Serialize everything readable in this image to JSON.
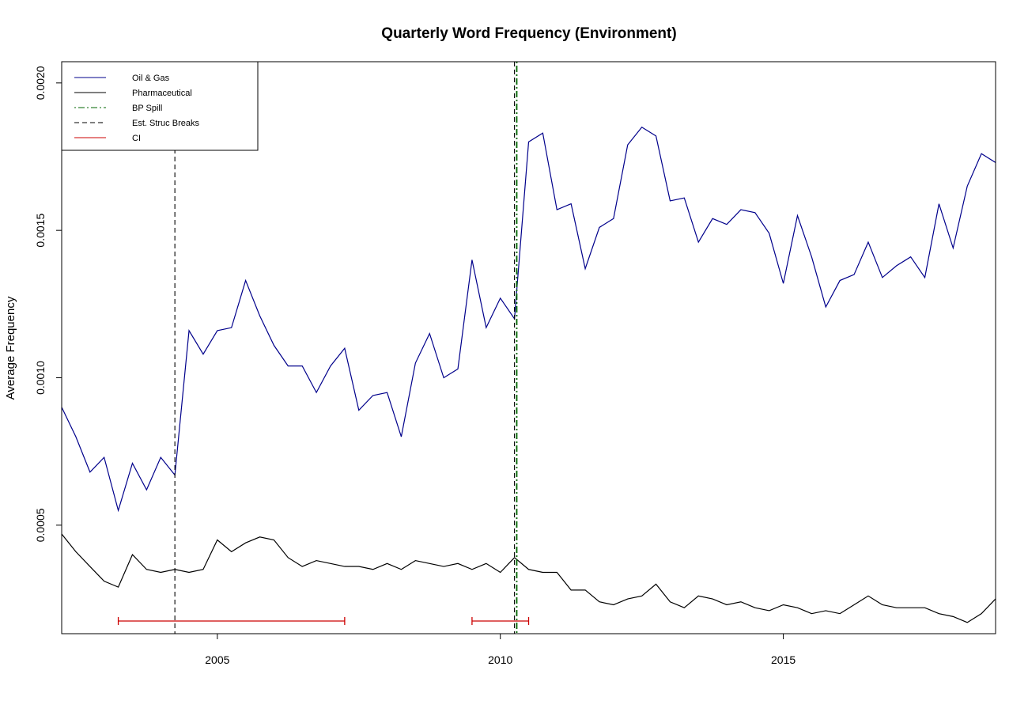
{
  "chart_data": {
    "type": "line",
    "title": "Quarterly Word Frequency (Environment)",
    "xlabel": "",
    "ylabel": "Average Frequency",
    "xlim": [
      2002.25,
      2018.75
    ],
    "ylim": [
      0.000132,
      0.002072
    ],
    "x_ticks": [
      2005,
      2010,
      2015
    ],
    "x_tick_labels": [
      "2005",
      "2010",
      "2015"
    ],
    "y_ticks": [
      0.0005,
      0.001,
      0.0015,
      0.002
    ],
    "y_tick_labels": [
      "0.0005",
      "0.0010",
      "0.0015",
      "0.0020"
    ],
    "legend": {
      "position": "top-left",
      "entries": [
        {
          "label": "Oil & Gas",
          "color": "#00008B",
          "style": "solid"
        },
        {
          "label": "Pharmaceutical",
          "color": "#000000",
          "style": "solid"
        },
        {
          "label": "BP Spill",
          "color": "#006400",
          "style": "dotdash"
        },
        {
          "label": "Est. Struc Breaks",
          "color": "#000000",
          "style": "dashed"
        },
        {
          "label": "CI",
          "color": "#CC0000",
          "style": "solid"
        }
      ]
    },
    "x_start": 2002.25,
    "x_step": 0.25,
    "series": [
      {
        "name": "Oil & Gas",
        "color": "#00008B",
        "values": [
          0.0009,
          0.0008,
          0.00068,
          0.00073,
          0.00055,
          0.00071,
          0.00062,
          0.00073,
          0.00067,
          0.00116,
          0.00108,
          0.00116,
          0.00117,
          0.00133,
          0.00121,
          0.00111,
          0.00104,
          0.00104,
          0.00095,
          0.00104,
          0.0011,
          0.00089,
          0.00094,
          0.00095,
          0.0008,
          0.00105,
          0.00115,
          0.001,
          0.00103,
          0.0014,
          0.00117,
          0.00127,
          0.0012,
          0.0018,
          0.00183,
          0.00157,
          0.00159,
          0.00137,
          0.00151,
          0.00154,
          0.00179,
          0.00185,
          0.00182,
          0.0016,
          0.00161,
          0.00146,
          0.00154,
          0.00152,
          0.00157,
          0.00156,
          0.00149,
          0.00132,
          0.00155,
          0.00141,
          0.00124,
          0.00133,
          0.00135,
          0.00146,
          0.00134,
          0.00138,
          0.00141,
          0.00134,
          0.00159,
          0.00144,
          0.00165,
          0.00176,
          0.00173
        ]
      },
      {
        "name": "Pharmaceutical",
        "color": "#000000",
        "values": [
          0.00047,
          0.00041,
          0.00036,
          0.00031,
          0.00029,
          0.0004,
          0.00035,
          0.00034,
          0.00035,
          0.00034,
          0.00035,
          0.00045,
          0.00041,
          0.00044,
          0.00046,
          0.00045,
          0.00039,
          0.00036,
          0.00038,
          0.00037,
          0.00036,
          0.00036,
          0.00035,
          0.00037,
          0.00035,
          0.00038,
          0.00037,
          0.00036,
          0.00037,
          0.00035,
          0.00037,
          0.00034,
          0.00039,
          0.00035,
          0.00034,
          0.00034,
          0.00028,
          0.00028,
          0.00024,
          0.00023,
          0.00025,
          0.00026,
          0.0003,
          0.00024,
          0.00022,
          0.00026,
          0.00025,
          0.00023,
          0.00024,
          0.00022,
          0.00021,
          0.00023,
          0.00022,
          0.0002,
          0.00021,
          0.0002,
          0.00023,
          0.00026,
          0.00023,
          0.00022,
          0.00022,
          0.00022,
          0.0002,
          0.00019,
          0.00017,
          0.0002,
          0.00025,
          0.00025
        ]
      }
    ],
    "vertical_lines": [
      {
        "name": "BP Spill",
        "x": 2010.29,
        "color": "#006400",
        "style": "dotdash"
      },
      {
        "name": "Est. Struc Breaks",
        "x": 2004.25,
        "color": "#000000",
        "style": "dashed"
      },
      {
        "name": "Est. Struc Breaks",
        "x": 2010.25,
        "color": "#000000",
        "style": "dashed"
      }
    ],
    "confidence_intervals": [
      {
        "name": "CI",
        "from": 2003.25,
        "to": 2007.25,
        "y": 0.000175,
        "color": "#CC0000"
      },
      {
        "name": "CI",
        "from": 2009.5,
        "to": 2010.5,
        "y": 0.000175,
        "color": "#CC0000"
      }
    ]
  }
}
